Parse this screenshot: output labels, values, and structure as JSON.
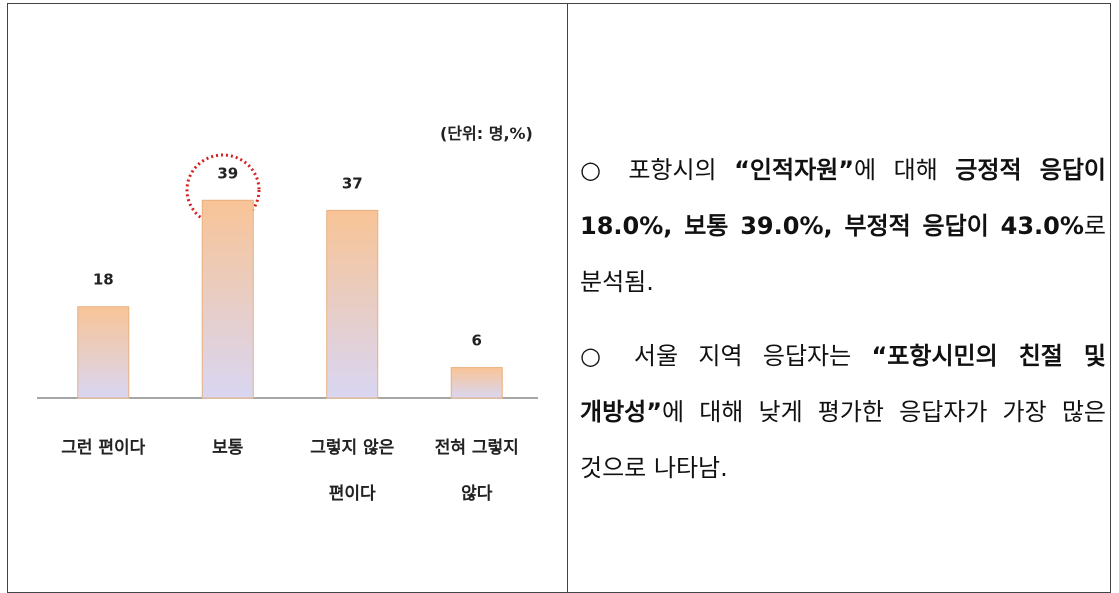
{
  "chart_data": {
    "type": "bar",
    "annotation": "(단위: 명,%)",
    "categories": [
      "그런 편이다",
      "보통",
      "그렇지 않은 편이다",
      "전혀 그렇지 않다"
    ],
    "values": [
      18,
      39,
      37,
      6
    ]
  },
  "text": {
    "bullets": [
      {
        "runs": [
          {
            "text": "○ 포항시의 ",
            "bold": false
          },
          {
            "text": "“인적자원”",
            "bold": true
          },
          {
            "text": "에 대해 ",
            "bold": false
          },
          {
            "text": "긍정적 응답이 18.0%, 보통 39.0%, 부정적 응답이 43.0%",
            "bold": true
          },
          {
            "text": "로 분석됨.",
            "bold": false
          }
        ]
      },
      {
        "runs": [
          {
            "text": "○ 서울 지역 응답자는 ",
            "bold": false
          },
          {
            "text": "“포항시민의 친절 및 개방성”",
            "bold": true
          },
          {
            "text": "에 대해 낮게 평가한 응답자가 가장 많은 것으로 나타남.",
            "bold": false
          }
        ]
      }
    ]
  }
}
